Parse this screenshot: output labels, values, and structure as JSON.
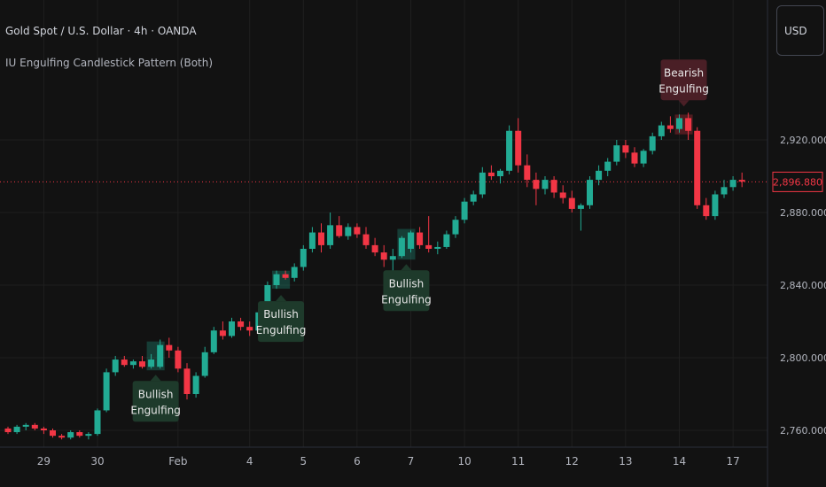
{
  "header": {
    "title": "Gold Spot / U.S. Dollar · 4h · OANDA",
    "indicator": "IU Engulfing Candlestick Pattern (Both)",
    "currency": "USD"
  },
  "colors": {
    "background": "#121212",
    "grid": "#1f1f1f",
    "up": "#22ab94",
    "down": "#f23645",
    "bull_label_bg": "#1e3a2b",
    "bear_label_bg": "#4a1f26",
    "axis_text": "#b2b5be"
  },
  "chart_data": {
    "type": "candlestick",
    "yaxis": {
      "ticks": [
        2760,
        2800,
        2840,
        2880,
        2920
      ],
      "tick_labels": [
        "2,760.000",
        "2,800.000",
        "2,840.000",
        "2,880.000",
        "2,920.000"
      ]
    },
    "xaxis": {
      "tick_labels": [
        "29",
        "30",
        "Feb",
        "4",
        "5",
        "6",
        "7",
        "10",
        "11",
        "12",
        "13",
        "14",
        "17"
      ],
      "tick_index": [
        4,
        10,
        19,
        27,
        33,
        39,
        45,
        51,
        57,
        63,
        69,
        75,
        81
      ]
    },
    "last_price": 2896.88,
    "last_price_label": "2,896.880",
    "candles": [
      [
        2761,
        2762,
        2758,
        2759
      ],
      [
        2759,
        2763,
        2758,
        2762
      ],
      [
        2762,
        2764,
        2760,
        2763
      ],
      [
        2763,
        2764,
        2760,
        2761
      ],
      [
        2761,
        2762,
        2758,
        2760
      ],
      [
        2760,
        2761,
        2756,
        2757
      ],
      [
        2757,
        2758,
        2755,
        2756
      ],
      [
        2756,
        2760,
        2755,
        2759
      ],
      [
        2759,
        2760,
        2756,
        2757
      ],
      [
        2757,
        2759,
        2755,
        2758
      ],
      [
        2758,
        2772,
        2757,
        2771
      ],
      [
        2771,
        2794,
        2770,
        2792
      ],
      [
        2792,
        2801,
        2790,
        2799
      ],
      [
        2799,
        2801,
        2795,
        2796
      ],
      [
        2796,
        2799,
        2794,
        2798
      ],
      [
        2798,
        2801,
        2794,
        2795
      ],
      [
        2795,
        2802,
        2794,
        2799
      ],
      [
        2795,
        2810,
        2794,
        2807
      ],
      [
        2807,
        2811,
        2800,
        2804
      ],
      [
        2804,
        2806,
        2792,
        2794
      ],
      [
        2794,
        2797,
        2777,
        2780
      ],
      [
        2780,
        2792,
        2778,
        2790
      ],
      [
        2790,
        2806,
        2789,
        2803
      ],
      [
        2803,
        2817,
        2802,
        2815
      ],
      [
        2815,
        2820,
        2810,
        2812
      ],
      [
        2812,
        2822,
        2811,
        2820
      ],
      [
        2820,
        2822,
        2815,
        2817
      ],
      [
        2817,
        2820,
        2812,
        2815
      ],
      [
        2815,
        2827,
        2812,
        2825
      ],
      [
        2825,
        2842,
        2824,
        2840
      ],
      [
        2840,
        2848,
        2838,
        2846
      ],
      [
        2846,
        2848,
        2843,
        2844
      ],
      [
        2844,
        2852,
        2842,
        2850
      ],
      [
        2850,
        2862,
        2848,
        2860
      ],
      [
        2860,
        2872,
        2858,
        2869
      ],
      [
        2869,
        2874,
        2858,
        2862
      ],
      [
        2862,
        2880,
        2860,
        2873
      ],
      [
        2873,
        2878,
        2866,
        2867
      ],
      [
        2867,
        2874,
        2865,
        2872
      ],
      [
        2872,
        2874,
        2866,
        2868
      ],
      [
        2868,
        2872,
        2860,
        2862
      ],
      [
        2862,
        2866,
        2856,
        2858
      ],
      [
        2858,
        2862,
        2850,
        2854
      ],
      [
        2854,
        2860,
        2842,
        2856
      ],
      [
        2856,
        2867,
        2855,
        2866
      ],
      [
        2860,
        2870,
        2858,
        2869
      ],
      [
        2869,
        2872,
        2860,
        2862
      ],
      [
        2862,
        2878,
        2858,
        2860
      ],
      [
        2860,
        2864,
        2857,
        2861
      ],
      [
        2861,
        2870,
        2860,
        2868
      ],
      [
        2868,
        2878,
        2866,
        2876
      ],
      [
        2876,
        2888,
        2874,
        2886
      ],
      [
        2886,
        2892,
        2884,
        2890
      ],
      [
        2890,
        2905,
        2888,
        2902
      ],
      [
        2902,
        2906,
        2898,
        2900
      ],
      [
        2900,
        2904,
        2896,
        2903
      ],
      [
        2903,
        2928,
        2901,
        2925
      ],
      [
        2925,
        2932,
        2902,
        2906
      ],
      [
        2906,
        2912,
        2894,
        2898
      ],
      [
        2898,
        2902,
        2884,
        2893
      ],
      [
        2893,
        2900,
        2890,
        2898
      ],
      [
        2898,
        2900,
        2888,
        2891
      ],
      [
        2891,
        2895,
        2885,
        2888
      ],
      [
        2888,
        2892,
        2880,
        2882
      ],
      [
        2882,
        2885,
        2870,
        2884
      ],
      [
        2884,
        2900,
        2882,
        2898
      ],
      [
        2898,
        2906,
        2895,
        2903
      ],
      [
        2903,
        2910,
        2900,
        2908
      ],
      [
        2908,
        2920,
        2906,
        2917
      ],
      [
        2917,
        2920,
        2910,
        2913
      ],
      [
        2913,
        2916,
        2905,
        2907
      ],
      [
        2907,
        2915,
        2905,
        2914
      ],
      [
        2914,
        2924,
        2912,
        2922
      ],
      [
        2922,
        2930,
        2920,
        2928
      ],
      [
        2928,
        2933,
        2924,
        2926
      ],
      [
        2926,
        2934,
        2924,
        2932
      ],
      [
        2932,
        2935,
        2920,
        2925
      ],
      [
        2925,
        2927,
        2882,
        2884
      ],
      [
        2884,
        2888,
        2876,
        2878
      ],
      [
        2878,
        2892,
        2876,
        2890
      ],
      [
        2890,
        2898,
        2888,
        2894
      ],
      [
        2894,
        2900,
        2892,
        2898
      ],
      [
        2898,
        2902,
        2894,
        2897
      ]
    ],
    "annotations": [
      {
        "type": "bullish",
        "text": [
          "Bullish",
          "Engulfing"
        ],
        "candles": [
          16,
          17
        ]
      },
      {
        "type": "bullish",
        "text": [
          "Bullish",
          "Engulfing"
        ],
        "candles": [
          30,
          31
        ]
      },
      {
        "type": "bullish",
        "text": [
          "Bullish",
          "Engulfing"
        ],
        "candles": [
          44,
          45
        ]
      },
      {
        "type": "bearish",
        "text": [
          "Bearish",
          "Engulfing"
        ],
        "candles": [
          75,
          76
        ]
      }
    ]
  }
}
